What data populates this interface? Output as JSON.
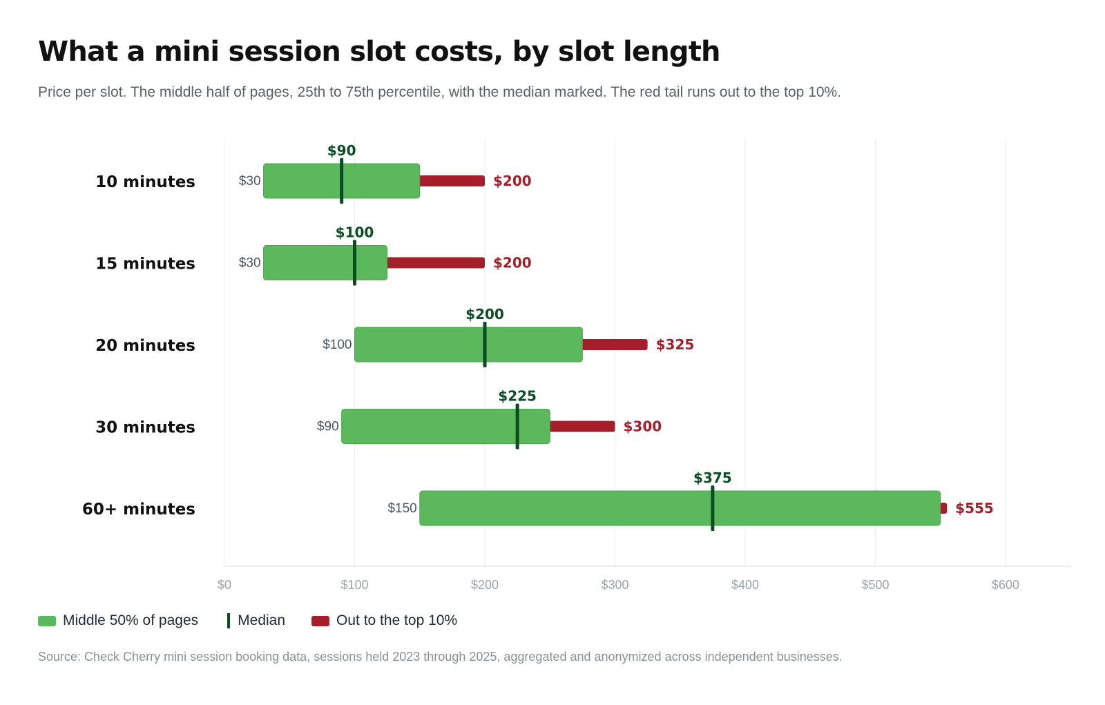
{
  "title": "What a mini session slot costs, by slot length",
  "subtitle": "Price per slot. The middle half of pages, 25th to 75th percentile, with the median marked. The red tail runs out to the top 10%.",
  "source": "Source: Check Cherry mini session booking data, sessions held 2023 through 2025, aggregated and anonymized across independent businesses.",
  "legend": {
    "range_label": "Middle 50% of pages",
    "median_label": "Median",
    "tail_label": "Out to the top 10%"
  },
  "colors": {
    "range": "#5cb85c",
    "median": "#0b4d23",
    "tail": "#a51f2b",
    "grid": "#eeeeee",
    "axis": "#9ca3af",
    "label": "#111111",
    "low_label": "#4b5563"
  },
  "chart_data": {
    "type": "range-bar",
    "title": "What a mini session slot costs, by slot length",
    "xlabel": "",
    "ylabel": "",
    "xlim": [
      0,
      650
    ],
    "grid": true,
    "legend_placement": "bottom-left",
    "ticks": [
      {
        "value": 0,
        "label": "$0"
      },
      {
        "value": 100,
        "label": "$100"
      },
      {
        "value": 200,
        "label": "$200"
      },
      {
        "value": 300,
        "label": "$300"
      },
      {
        "value": 400,
        "label": "$400"
      },
      {
        "value": 500,
        "label": "$500"
      },
      {
        "value": 600,
        "label": "$600"
      }
    ],
    "rows": [
      {
        "category": "10 minutes",
        "p25": 30,
        "p25_label": "$30",
        "median": 90,
        "median_label": "$90",
        "p75": 150,
        "p90": 200,
        "p90_label": "$200"
      },
      {
        "category": "15 minutes",
        "p25": 30,
        "p25_label": "$30",
        "median": 100,
        "median_label": "$100",
        "p75": 125,
        "p90": 200,
        "p90_label": "$200"
      },
      {
        "category": "20 minutes",
        "p25": 100,
        "p25_label": "$100",
        "median": 200,
        "median_label": "$200",
        "p75": 275,
        "p90": 325,
        "p90_label": "$325"
      },
      {
        "category": "30 minutes",
        "p25": 90,
        "p25_label": "$90",
        "median": 225,
        "median_label": "$225",
        "p75": 250,
        "p90": 300,
        "p90_label": "$300"
      },
      {
        "category": "60+ minutes",
        "p25": 150,
        "p25_label": "$150",
        "median": 375,
        "median_label": "$375",
        "p75": 550,
        "p90": 555,
        "p90_label": "$555"
      }
    ]
  }
}
